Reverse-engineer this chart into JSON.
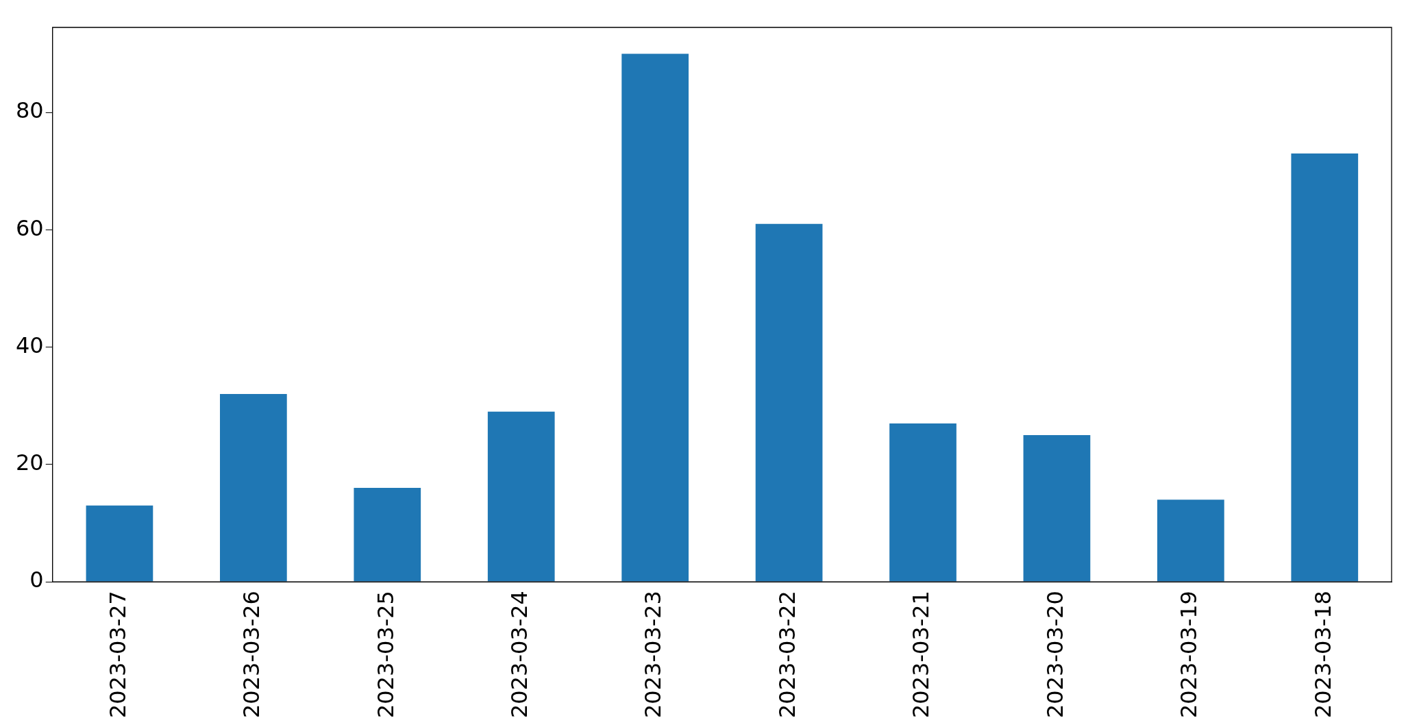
{
  "chart_data": {
    "type": "bar",
    "categories": [
      "2023-03-27",
      "2023-03-26",
      "2023-03-25",
      "2023-03-24",
      "2023-03-23",
      "2023-03-22",
      "2023-03-21",
      "2023-03-20",
      "2023-03-19",
      "2023-03-18"
    ],
    "values": [
      13,
      32,
      16,
      29,
      90,
      61,
      27,
      25,
      14,
      73
    ],
    "color": "#1f77b4",
    "ylim": [
      0,
      94.5
    ],
    "yticks": [
      0,
      20,
      40,
      60,
      80
    ],
    "grid": false,
    "legend": false
  }
}
